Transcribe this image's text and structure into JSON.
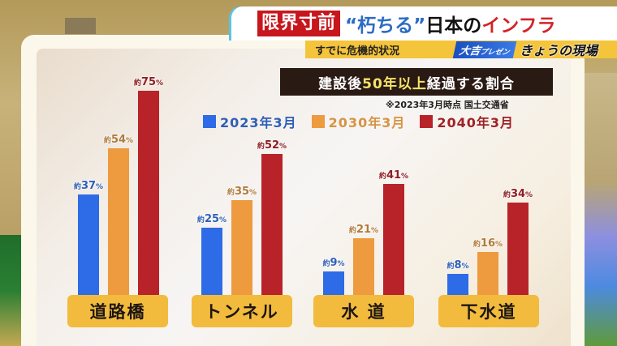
{
  "banner": {
    "tag": "限界寸前",
    "quote": "“朽ちる”",
    "middle": "日本の",
    "highlight": "インフラ",
    "subtitle": "すでに危機的状況",
    "presenter": "大吉",
    "presenter_suffix": "プレゼン",
    "show_name": "きょうの現場"
  },
  "chart": {
    "title_pre": "建設後",
    "title_hl": "50年以上",
    "title_post": "経過する割合",
    "source": "※2023年3月時点 国土交通省",
    "prefix": "約",
    "suffix": "%"
  },
  "colors": {
    "s2023": "#2e6be6",
    "s2030": "#ee9a3e",
    "s2040": "#b8232a",
    "label2023": "#2e5fb8",
    "label2030": "#b07a3a",
    "label2040": "#8e1e22"
  },
  "chart_data": {
    "type": "bar",
    "title": "建設後50年以上経過する割合",
    "subtitle": "※2023年3月時点 国土交通省",
    "categories": [
      "道路橋",
      "トンネル",
      "水道",
      "下水道"
    ],
    "series": [
      {
        "name": "2023年3月",
        "values": [
          37,
          25,
          9,
          8
        ]
      },
      {
        "name": "2030年3月",
        "values": [
          54,
          35,
          21,
          16
        ]
      },
      {
        "name": "2040年3月",
        "values": [
          75,
          52,
          41,
          34
        ]
      }
    ],
    "xlabel": "",
    "ylabel": "",
    "ylim": [
      0,
      80
    ],
    "grid": false,
    "legend_position": "top"
  },
  "legend": [
    {
      "label": "2023年3月"
    },
    {
      "label": "2030年3月"
    },
    {
      "label": "2040年3月"
    }
  ],
  "categories": [
    {
      "name": "道路橋",
      "values": [
        "37",
        "54",
        "75"
      ]
    },
    {
      "name": "トンネル",
      "values": [
        "25",
        "35",
        "52"
      ]
    },
    {
      "name": "水 道",
      "values": [
        "9",
        "21",
        "41"
      ]
    },
    {
      "name": "下水道",
      "values": [
        "8",
        "16",
        "34"
      ]
    }
  ]
}
